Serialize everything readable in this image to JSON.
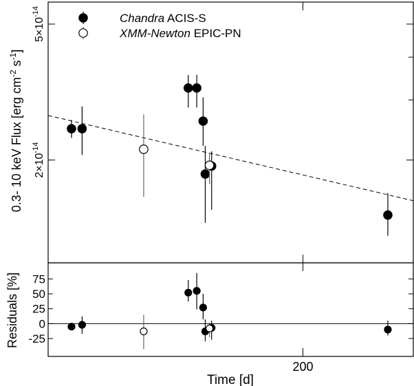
{
  "chart_data": [
    {
      "type": "scatter",
      "panel": "flux",
      "ylabel_main": "0.3- 10 keV Flux",
      "ylabel_unit_parts": [
        "[erg cm",
        "-2",
        " s",
        "-1",
        "]"
      ],
      "yscale": "log",
      "ylim": [
        1e-14,
        5.8e-14
      ],
      "yticklabels": [
        {
          "value": 2e-14,
          "mantissa": "2×10",
          "exp": "-14"
        },
        {
          "value": 5e-14,
          "mantissa": "5×10",
          "exp": "-14"
        }
      ],
      "xlim": [
        80,
        252
      ],
      "legend": [
        {
          "marker": "filled",
          "label_italic": "Chandra",
          "label_rest": " ACIS-S"
        },
        {
          "marker": "open",
          "label_italic": "XMM-Newton",
          "label_rest": " EPIC-PN"
        }
      ],
      "legend_position": "top-left",
      "fit_line": {
        "style": "dashed",
        "x": [
          80,
          252
        ],
        "y": [
          2.7e-14,
          1.52e-14
        ]
      },
      "series": [
        {
          "marker": "filled",
          "points": [
            {
              "x": 91,
              "y": 2.47e-14,
              "ylo": 2.32e-14,
              "yhi": 2.62e-14
            },
            {
              "x": 96,
              "y": 2.47e-14,
              "ylo": 2.07e-14,
              "yhi": 2.87e-14
            },
            {
              "x": 146,
              "y": 3.25e-14,
              "ylo": 2.85e-14,
              "yhi": 3.55e-14
            },
            {
              "x": 150,
              "y": 3.25e-14,
              "ylo": 2.85e-14,
              "yhi": 3.55e-14
            },
            {
              "x": 153,
              "y": 2.6e-14,
              "ylo": 2.2e-14,
              "yhi": 3.05e-14
            },
            {
              "x": 154,
              "y": 1.82e-14,
              "ylo": 1.31e-14,
              "yhi": 2.2e-14
            },
            {
              "x": 157,
              "y": 1.92e-14,
              "ylo": 1.43e-14,
              "yhi": 2.12e-14
            },
            {
              "x": 240,
              "y": 1.38e-14,
              "ylo": 1.2e-14,
              "yhi": 1.6e-14
            }
          ]
        },
        {
          "marker": "open",
          "points": [
            {
              "x": 125,
              "y": 2.15e-14,
              "ylo": 1.56e-14,
              "yhi": 2.72e-14
            },
            {
              "x": 156,
              "y": 1.93e-14,
              "ylo": 1.7e-14,
              "yhi": 2.1e-14
            }
          ]
        }
      ]
    },
    {
      "type": "scatter",
      "panel": "residuals",
      "ylabel": "Residuals [%]",
      "ylim": [
        -55,
        102
      ],
      "yticks": [
        75,
        50,
        25,
        0,
        -25
      ],
      "yticklabels": [
        "75",
        "50",
        "25",
        "0",
        "-25"
      ],
      "xlim": [
        80,
        252
      ],
      "xticks": [
        200
      ],
      "xticklabels": [
        "200"
      ],
      "xlabel": "Time [d]",
      "zero_line": true,
      "series": [
        {
          "marker": "filled",
          "points": [
            {
              "x": 91,
              "y": -5,
              "ylo": -10,
              "yhi": 0
            },
            {
              "x": 96,
              "y": -2,
              "ylo": -17,
              "yhi": 12
            },
            {
              "x": 146,
              "y": 52,
              "ylo": 37,
              "yhi": 73
            },
            {
              "x": 150,
              "y": 55,
              "ylo": 24,
              "yhi": 85
            },
            {
              "x": 153,
              "y": 27,
              "ylo": 7,
              "yhi": 50
            },
            {
              "x": 154,
              "y": -13,
              "ylo": -30,
              "yhi": 7
            },
            {
              "x": 157,
              "y": -7,
              "ylo": -27,
              "yhi": 5
            },
            {
              "x": 240,
              "y": -10,
              "ylo": -20,
              "yhi": 5
            }
          ]
        },
        {
          "marker": "open",
          "points": [
            {
              "x": 125,
              "y": -13,
              "ylo": -43,
              "yhi": 15
            },
            {
              "x": 156,
              "y": -8,
              "ylo": -23,
              "yhi": 2
            }
          ]
        }
      ]
    }
  ]
}
